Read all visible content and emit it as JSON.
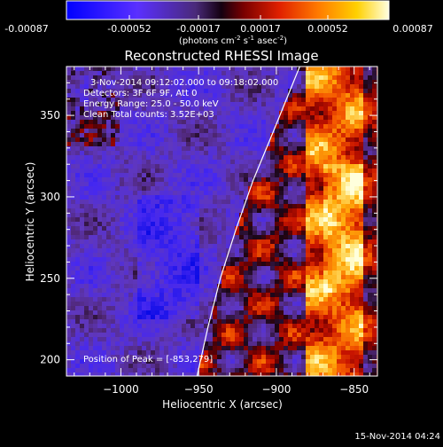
{
  "colorbar": {
    "ticks": [
      "-0.00087",
      "-0.00052",
      "-0.00017",
      "0.00017",
      "0.00052",
      "0.00087"
    ],
    "units_label": "(photons cm",
    "units_exp1": "-2",
    "units_mid": " s",
    "units_exp2": "-1",
    "units_tail": " asec",
    "units_exp3": "-2",
    "units_close": ")",
    "range": [
      -0.00087,
      0.00087
    ]
  },
  "chart_data": {
    "type": "heatmap",
    "title": "Reconstructed RHESSI Image",
    "xlabel": "Heliocentric X (arcsec)",
    "ylabel": "Heliocentric Y (arcsec)",
    "xlim": [
      -1035,
      -835
    ],
    "ylim": [
      190,
      380
    ],
    "xticks": [
      -1000,
      -950,
      -900,
      -850
    ],
    "xtick_labels": [
      "−1000",
      "−950",
      "−900",
      "−850"
    ],
    "yticks": [
      200,
      250,
      300,
      350
    ],
    "ytick_labels": [
      "200",
      "250",
      "300",
      "350"
    ],
    "limb_curve": [
      [
        -951,
        190
      ],
      [
        -944,
        220
      ],
      [
        -936,
        250
      ],
      [
        -926,
        280
      ],
      [
        -915,
        310
      ],
      [
        -902,
        340
      ],
      [
        -885,
        380
      ]
    ],
    "peak_position": [
      -853,
      279
    ],
    "colors": {
      "limb": "#ffffff",
      "background": "#000000"
    }
  },
  "annotations": {
    "time_range": "3-Nov-2014 09:12:02.000 to 09:18:02.000",
    "detectors": "Detectors: 3F 6F 9F, Att 0",
    "energy": "Energy Range: 25.0 - 50.0 keV",
    "clean": "Clean    Total counts: 3.52E+03",
    "peak": "Position of Peak = [-853,279]"
  },
  "footer": {
    "timestamp": "15-Nov-2014 04:24"
  }
}
